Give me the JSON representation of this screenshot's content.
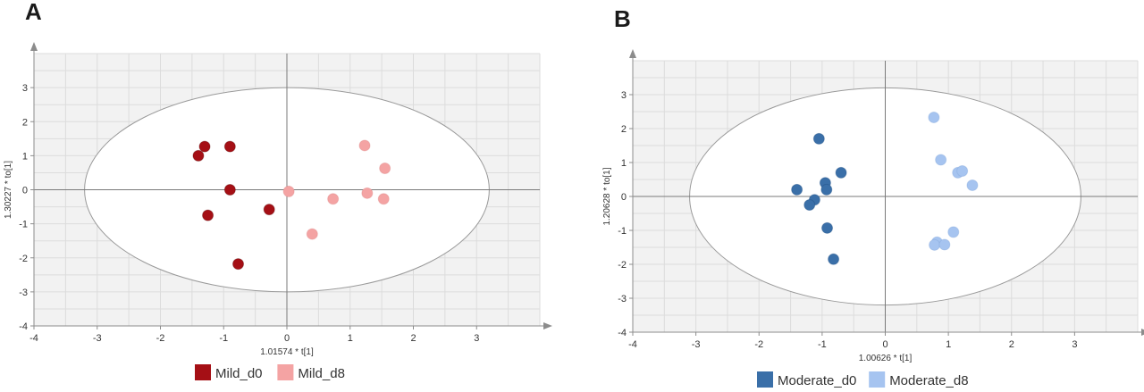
{
  "chart_data": [
    {
      "type": "scatter",
      "panel": "A",
      "xlabel": "1.01574 * t[1]",
      "ylabel": "1.30227 * to[1]",
      "xlim": [
        -4,
        4
      ],
      "ylim": [
        -4,
        4
      ],
      "xticks": [
        "-4",
        "-3",
        "-2",
        "-1",
        "0",
        "1",
        "2",
        "3"
      ],
      "yticks": [
        "-4",
        "-3",
        "-2",
        "-1",
        "0",
        "1",
        "2",
        "3"
      ],
      "ellipse": {
        "rx": 3.2,
        "ry": 3.0
      },
      "grid": true,
      "legend_position": "bottom-center",
      "series": [
        {
          "name": "Mild_d0",
          "color": "#a50f15",
          "points": [
            [
              -1.4,
              1.0
            ],
            [
              -1.3,
              1.27
            ],
            [
              -0.9,
              1.27
            ],
            [
              -0.9,
              0.0
            ],
            [
              -1.25,
              -0.75
            ],
            [
              -0.28,
              -0.58
            ],
            [
              -0.77,
              -2.18
            ]
          ]
        },
        {
          "name": "Mild_d8",
          "color": "#f4a3a3",
          "points": [
            [
              1.23,
              1.3
            ],
            [
              1.55,
              0.63
            ],
            [
              0.03,
              -0.05
            ],
            [
              0.73,
              -0.27
            ],
            [
              1.27,
              -0.1
            ],
            [
              1.53,
              -0.27
            ],
            [
              0.4,
              -1.3
            ]
          ]
        }
      ]
    },
    {
      "type": "scatter",
      "panel": "B",
      "xlabel": "1.00626 * t[1]",
      "ylabel": "1.20628 * to[1]",
      "xlim": [
        -4,
        4
      ],
      "ylim": [
        -4,
        4
      ],
      "xticks": [
        "-4",
        "-3",
        "-2",
        "-1",
        "0",
        "1",
        "2",
        "3"
      ],
      "yticks": [
        "-4",
        "-3",
        "-2",
        "-1",
        "0",
        "1",
        "2",
        "3"
      ],
      "ellipse": {
        "rx": 3.1,
        "ry": 3.2
      },
      "grid": true,
      "legend_position": "bottom-center",
      "series": [
        {
          "name": "Moderate_d0",
          "color": "#3a6fa8",
          "points": [
            [
              -1.05,
              1.7
            ],
            [
              -0.7,
              0.7
            ],
            [
              -0.95,
              0.4
            ],
            [
              -0.93,
              0.2
            ],
            [
              -1.4,
              0.2
            ],
            [
              -1.12,
              -0.1
            ],
            [
              -1.2,
              -0.25
            ],
            [
              -0.92,
              -0.93
            ],
            [
              -0.82,
              -1.85
            ]
          ]
        },
        {
          "name": "Moderate_d8",
          "color": "#a6c4f0",
          "points": [
            [
              0.77,
              2.33
            ],
            [
              0.88,
              1.08
            ],
            [
              1.15,
              0.7
            ],
            [
              1.22,
              0.75
            ],
            [
              1.38,
              0.33
            ],
            [
              1.08,
              -1.05
            ],
            [
              0.82,
              -1.35
            ],
            [
              0.78,
              -1.43
            ],
            [
              0.94,
              -1.42
            ]
          ]
        }
      ]
    }
  ]
}
